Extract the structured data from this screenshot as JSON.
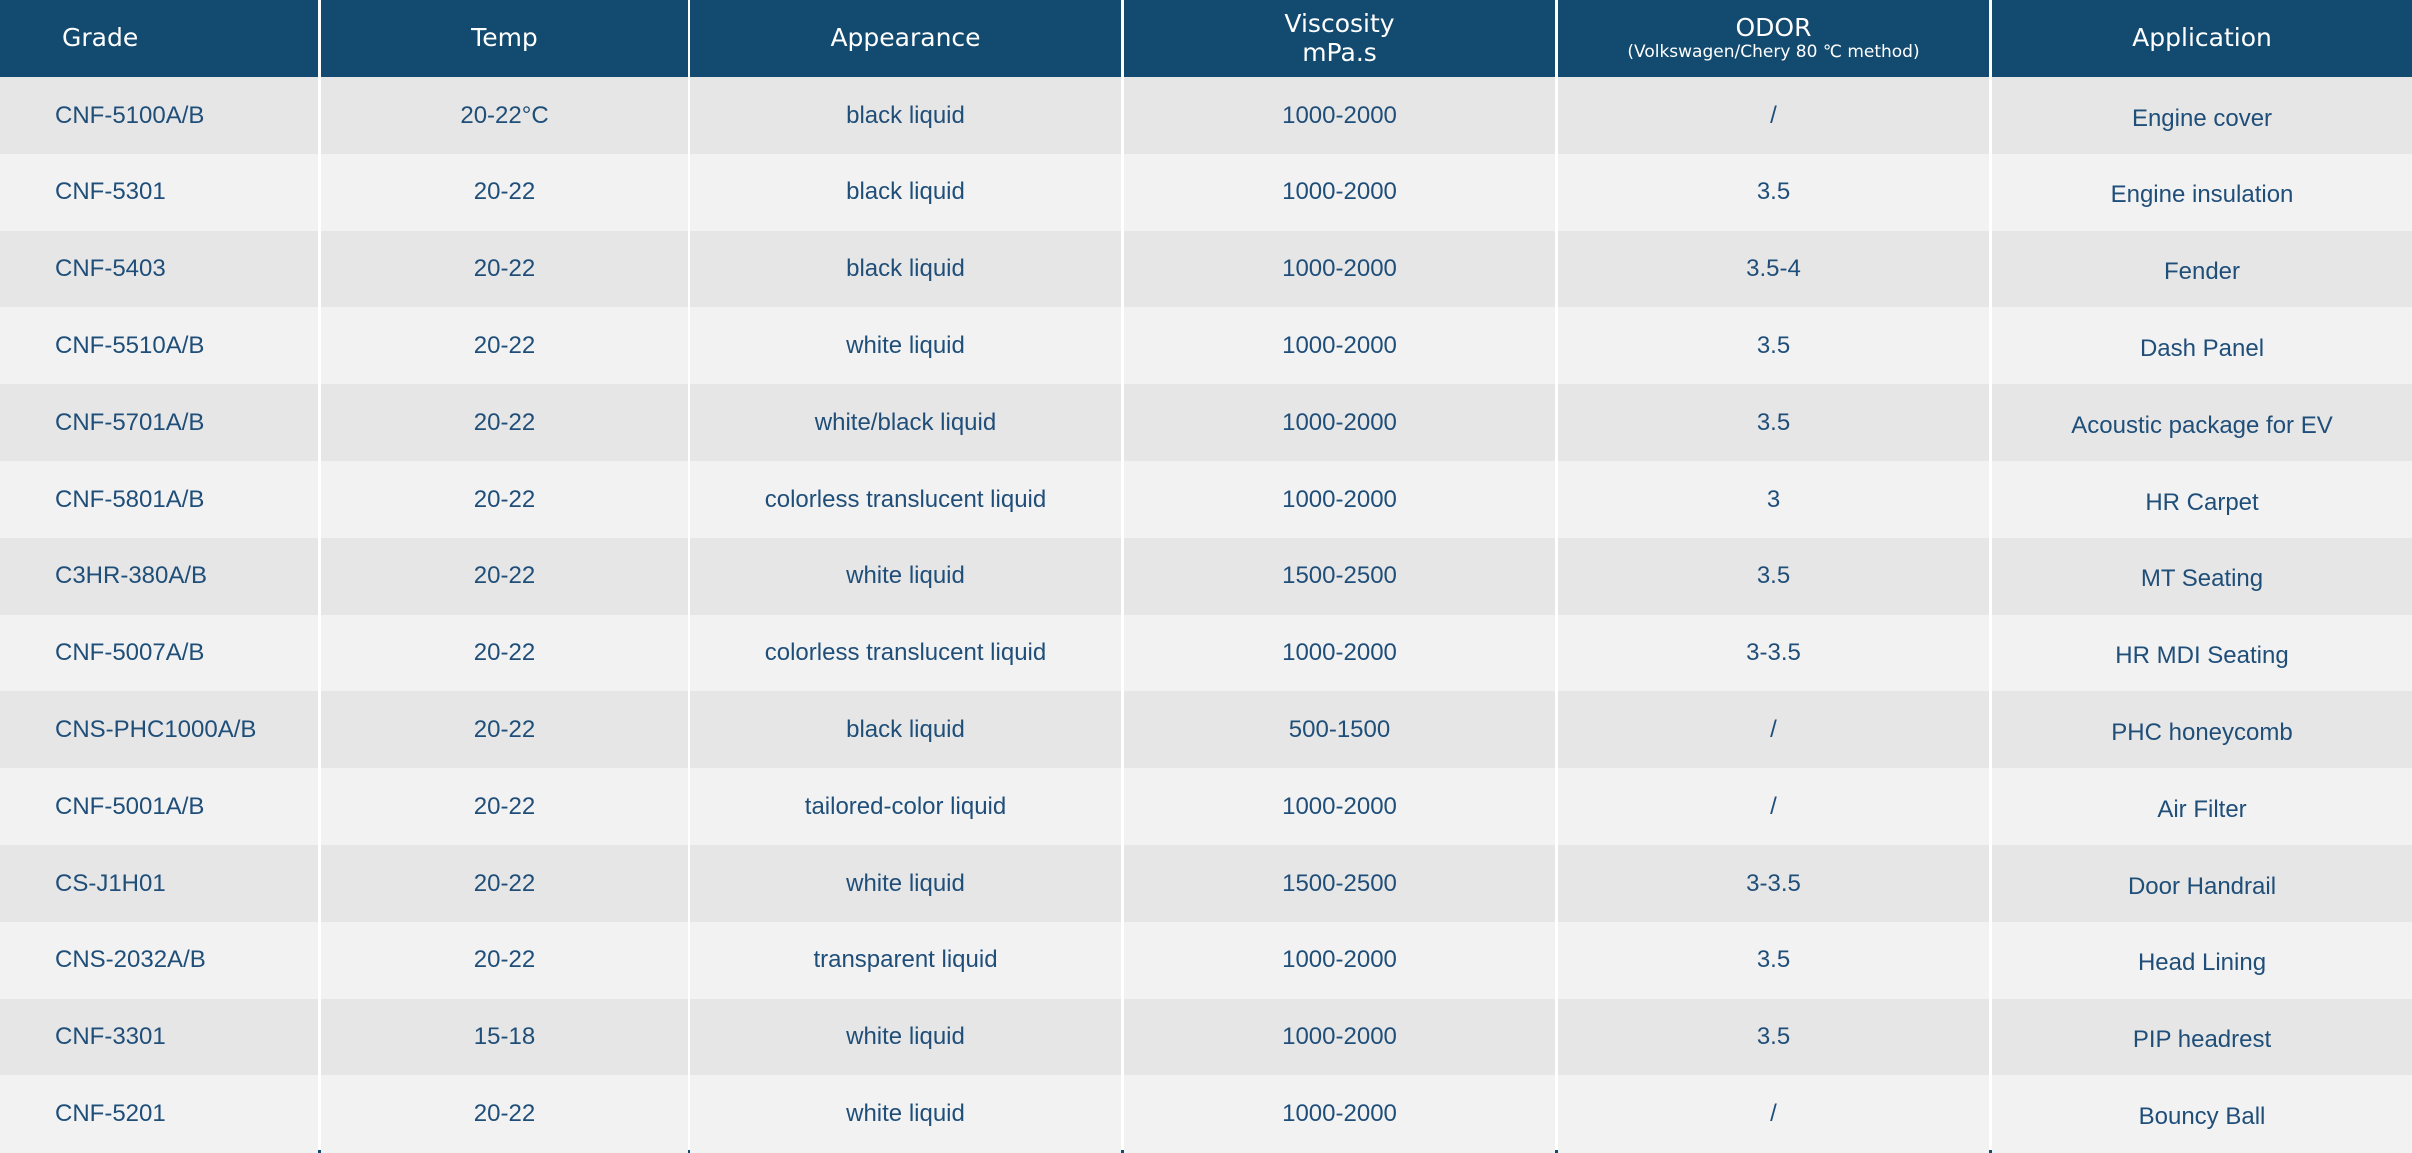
{
  "table": {
    "header": [
      [
        "Grade"
      ],
      [
        "Temp"
      ],
      [
        "Appearance"
      ],
      [
        "Viscosity",
        "mPa.s"
      ],
      [
        "ODOR",
        "(Volkswagen/Chery 80 ℃ method)"
      ],
      [
        "Application"
      ]
    ],
    "rows": [
      [
        "CNF-5100A/B",
        "20-22°C",
        "black liquid",
        "1000-2000",
        "/",
        "Engine cover"
      ],
      [
        "CNF-5301",
        "20-22",
        "black liquid",
        "1000-2000",
        "3.5",
        "Engine insulation"
      ],
      [
        "CNF-5403",
        "20-22",
        "black liquid",
        "1000-2000",
        "3.5-4",
        "Fender"
      ],
      [
        "CNF-5510A/B",
        "20-22",
        "white liquid",
        "1000-2000",
        "3.5",
        "Dash Panel"
      ],
      [
        "CNF-5701A/B",
        "20-22",
        "white/black liquid",
        "1000-2000",
        "3.5",
        "Acoustic package for EV"
      ],
      [
        "CNF-5801A/B",
        "20-22",
        "colorless translucent liquid",
        "1000-2000",
        "3",
        "HR Carpet"
      ],
      [
        "C3HR-380A/B",
        "20-22",
        "white liquid",
        "1500-2500",
        "3.5",
        "MT Seating"
      ],
      [
        "CNF-5007A/B",
        "20-22",
        "colorless translucent liquid",
        "1000-2000",
        "3-3.5",
        "HR MDI Seating"
      ],
      [
        "CNS-PHC1000A/B",
        "20-22",
        "black liquid",
        "500-1500",
        "/",
        "PHC honeycomb"
      ],
      [
        "CNF-5001A/B",
        "20-22",
        "tailored-color liquid",
        "1000-2000",
        "/",
        "Air Filter"
      ],
      [
        "CS-J1H01",
        "20-22",
        "white liquid",
        "1500-2500",
        "3-3.5",
        "Door Handrail"
      ],
      [
        "CNS-2032A/B",
        "20-22",
        "transparent liquid",
        "1000-2000",
        "3.5",
        "Head Lining"
      ],
      [
        "CNF-3301",
        "15-18",
        "white liquid",
        "1000-2000",
        "3.5",
        "PIP headrest"
      ],
      [
        "CNF-5201",
        "20-22",
        "white liquid",
        "1000-2000",
        "/",
        "Bouncy Ball"
      ]
    ]
  }
}
